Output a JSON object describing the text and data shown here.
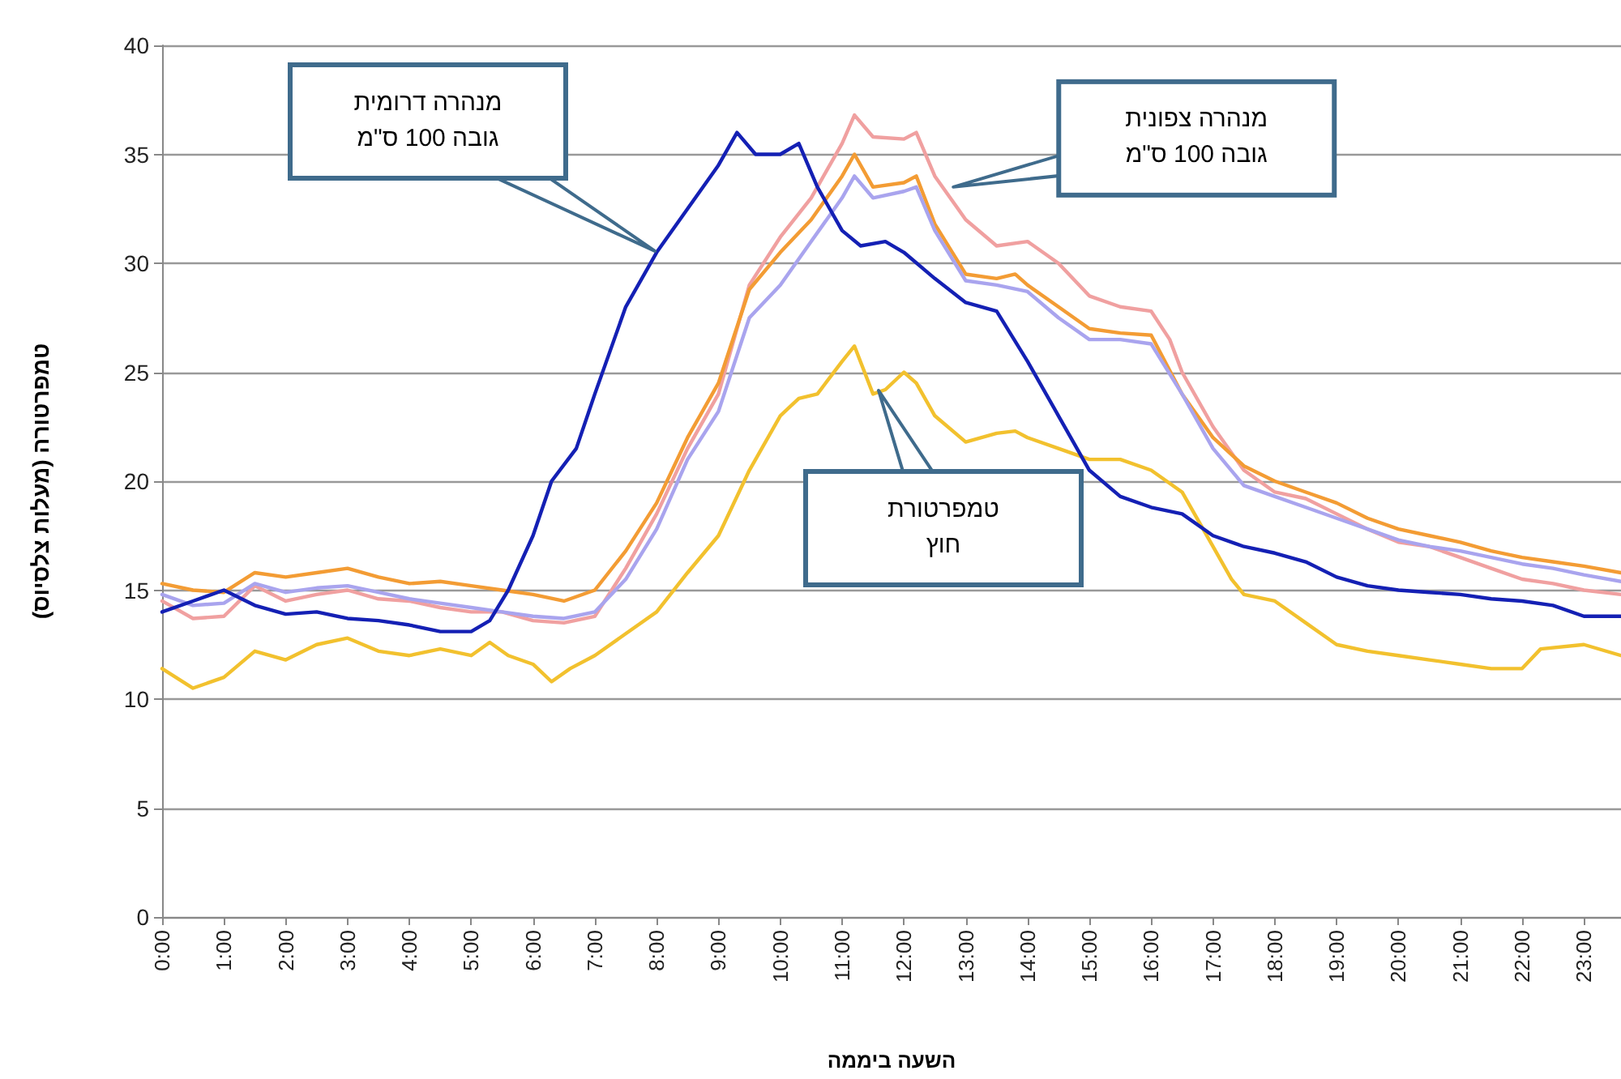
{
  "chart_data": {
    "type": "line",
    "xlabel": "השעה ביממה",
    "ylabel": "טמפרטורה (מעלות צלסיוס)",
    "xlim": [
      0,
      23.6
    ],
    "ylim": [
      0,
      40
    ],
    "yticks": [
      0,
      5,
      10,
      15,
      20,
      25,
      30,
      35,
      40
    ],
    "xticks": [
      {
        "value": 0,
        "label": "0:00"
      },
      {
        "value": 1,
        "label": "1:00"
      },
      {
        "value": 2,
        "label": "2:00"
      },
      {
        "value": 3,
        "label": "3:00"
      },
      {
        "value": 4,
        "label": "4:00"
      },
      {
        "value": 5,
        "label": "5:00"
      },
      {
        "value": 6,
        "label": "6:00"
      },
      {
        "value": 7,
        "label": "7:00"
      },
      {
        "value": 8,
        "label": "8:00"
      },
      {
        "value": 9,
        "label": "9:00"
      },
      {
        "value": 10,
        "label": "10:00"
      },
      {
        "value": 11,
        "label": "11:00"
      },
      {
        "value": 12,
        "label": "12:00"
      },
      {
        "value": 13,
        "label": "13:00"
      },
      {
        "value": 14,
        "label": "14:00"
      },
      {
        "value": 15,
        "label": "15:00"
      },
      {
        "value": 16,
        "label": "16:00"
      },
      {
        "value": 17,
        "label": "17:00"
      },
      {
        "value": 18,
        "label": "18:00"
      },
      {
        "value": 19,
        "label": "19:00"
      },
      {
        "value": 20,
        "label": "20:00"
      },
      {
        "value": 21,
        "label": "21:00"
      },
      {
        "value": 22,
        "label": "22:00"
      },
      {
        "value": 23,
        "label": "23:00"
      }
    ],
    "grid": "y",
    "marker": "none",
    "line_style": "solid",
    "annotations": [
      "מנהרה דרומית\nגובה 100 ס\"מ",
      {
        "text": "מנהרה צפונית\nגובה 100 ס\"מ",
        "x": 12.8,
        "y": 33.5
      },
      "טמפרטורת\nחוץ"
    ],
    "series": [
      {
        "color": "#f0a0a0",
        "x": [
          0,
          0.5,
          1,
          1.5,
          2,
          2.5,
          3,
          3.5,
          4,
          4.5,
          5,
          5.5,
          6,
          6.5,
          7,
          7.5,
          8,
          8.5,
          9,
          9.5,
          10,
          10.5,
          11,
          11.2,
          11.5,
          12,
          12.2,
          12.5,
          13,
          13.5,
          14,
          14.5,
          15,
          15.5,
          16,
          16.3,
          16.5,
          17,
          17.5,
          18,
          18.5,
          19,
          19.5,
          20,
          20.5,
          21,
          21.5,
          22,
          22.5,
          23,
          23.6
        ],
        "values": [
          14.5,
          13.7,
          13.8,
          15.2,
          14.5,
          14.8,
          15,
          14.6,
          14.5,
          14.2,
          14,
          14,
          13.6,
          13.5,
          13.8,
          16,
          18.5,
          21.5,
          24,
          29,
          31.2,
          33,
          35.5,
          36.8,
          35.8,
          35.7,
          36,
          34,
          32,
          30.8,
          31,
          30,
          28.5,
          28,
          27.8,
          26.5,
          25,
          22.5,
          20.5,
          19.5,
          19.2,
          18.5,
          17.8,
          17.2,
          17,
          16.5,
          16,
          15.5,
          15.3,
          15,
          14.8
        ]
      },
      {
        "color": "#f39c34",
        "x": [
          0,
          0.5,
          1,
          1.5,
          2,
          2.5,
          3,
          3.5,
          4,
          4.5,
          5,
          5.5,
          6,
          6.5,
          7,
          7.5,
          8,
          8.5,
          9,
          9.5,
          10,
          10.5,
          11,
          11.2,
          11.5,
          12,
          12.2,
          12.5,
          13,
          13.5,
          13.8,
          14,
          14.5,
          15,
          15.5,
          16,
          16.5,
          17,
          17.5,
          18,
          18.5,
          19,
          19.5,
          20,
          20.5,
          21,
          21.5,
          22,
          22.5,
          23,
          23.6
        ],
        "values": [
          15.3,
          15,
          14.9,
          15.8,
          15.6,
          15.8,
          16,
          15.6,
          15.3,
          15.4,
          15.2,
          15,
          14.8,
          14.5,
          15,
          16.8,
          19,
          22,
          24.5,
          28.8,
          30.5,
          32,
          34,
          35,
          33.5,
          33.7,
          34,
          31.8,
          29.5,
          29.3,
          29.5,
          29,
          28,
          27,
          26.8,
          26.7,
          24,
          22,
          20.7,
          20,
          19.5,
          19,
          18.3,
          17.8,
          17.5,
          17.2,
          16.8,
          16.5,
          16.3,
          16.1,
          15.8
        ]
      },
      {
        "color": "#a9a4ee",
        "x": [
          0,
          0.5,
          1,
          1.5,
          2,
          2.5,
          3,
          3.5,
          4,
          4.5,
          5,
          5.5,
          6,
          6.5,
          7,
          7.5,
          8,
          8.5,
          9,
          9.5,
          10,
          10.5,
          11,
          11.2,
          11.5,
          12,
          12.2,
          12.5,
          13,
          13.5,
          14,
          14.5,
          15,
          15.5,
          16,
          16.5,
          17,
          17.5,
          18,
          18.5,
          19,
          19.5,
          20,
          20.5,
          21,
          21.5,
          22,
          22.5,
          23,
          23.6
        ],
        "values": [
          14.8,
          14.3,
          14.4,
          15.3,
          14.9,
          15.1,
          15.2,
          14.9,
          14.6,
          14.4,
          14.2,
          14,
          13.8,
          13.7,
          14,
          15.5,
          17.8,
          21,
          23.2,
          27.5,
          29,
          31,
          33,
          34,
          33,
          33.3,
          33.5,
          31.5,
          29.2,
          29,
          28.7,
          27.5,
          26.5,
          26.5,
          26.3,
          24,
          21.5,
          19.8,
          19.3,
          18.8,
          18.3,
          17.8,
          17.3,
          17,
          16.8,
          16.5,
          16.2,
          16,
          15.7,
          15.4
        ]
      },
      {
        "color": "#f2c12e",
        "x": [
          0,
          0.5,
          1,
          1.5,
          2,
          2.5,
          3,
          3.5,
          4,
          4.5,
          5,
          5.3,
          5.6,
          6,
          6.3,
          6.6,
          7,
          7.5,
          8,
          8.5,
          9,
          9.5,
          10,
          10.3,
          10.6,
          11,
          11.2,
          11.5,
          11.7,
          12,
          12.2,
          12.5,
          13,
          13.5,
          13.8,
          14,
          14.5,
          15,
          15.5,
          16,
          16.5,
          17,
          17.3,
          17.5,
          18,
          18.5,
          19,
          19.5,
          20,
          20.5,
          21,
          21.5,
          22,
          22.3,
          23,
          23.6
        ],
        "values": [
          11.4,
          10.5,
          11,
          12.2,
          11.8,
          12.5,
          12.8,
          12.2,
          12,
          12.3,
          12,
          12.6,
          12,
          11.6,
          10.8,
          11.4,
          12,
          13,
          14,
          15.8,
          17.5,
          20.5,
          23,
          23.8,
          24,
          25.5,
          26.2,
          24,
          24.2,
          25,
          24.5,
          23,
          21.8,
          22.2,
          22.3,
          22,
          21.5,
          21,
          21,
          20.5,
          19.5,
          17,
          15.5,
          14.8,
          14.5,
          13.5,
          12.5,
          12.2,
          12,
          11.8,
          11.6,
          11.4,
          11.4,
          12.3,
          12.5,
          12
        ]
      },
      {
        "color": "#1420b4",
        "x": [
          0,
          0.5,
          1,
          1.5,
          2,
          2.5,
          3,
          3.5,
          4,
          4.5,
          5,
          5.3,
          5.6,
          6,
          6.3,
          6.7,
          7,
          7.5,
          8,
          8.5,
          9,
          9.3,
          9.6,
          10,
          10.3,
          10.6,
          11,
          11.3,
          11.7,
          12,
          12.5,
          13,
          13.5,
          14,
          14.5,
          15,
          15.5,
          16,
          16.5,
          17,
          17.5,
          18,
          18.5,
          19,
          19.5,
          20,
          20.5,
          21,
          21.5,
          22,
          22.5,
          23,
          23.6
        ],
        "values": [
          14,
          14.5,
          15,
          14.3,
          13.9,
          14,
          13.7,
          13.6,
          13.4,
          13.1,
          13.1,
          13.6,
          15,
          17.5,
          20,
          21.5,
          24,
          28,
          30.5,
          32.5,
          34.5,
          36,
          35,
          35,
          35.5,
          33.5,
          31.5,
          30.8,
          31,
          30.5,
          29.3,
          28.2,
          27.8,
          25.5,
          23,
          20.5,
          19.3,
          18.8,
          18.5,
          17.5,
          17,
          16.7,
          16.3,
          15.6,
          15.2,
          15,
          14.9,
          14.8,
          14.6,
          14.5,
          14.3,
          13.8,
          13.8
        ]
      }
    ]
  }
}
